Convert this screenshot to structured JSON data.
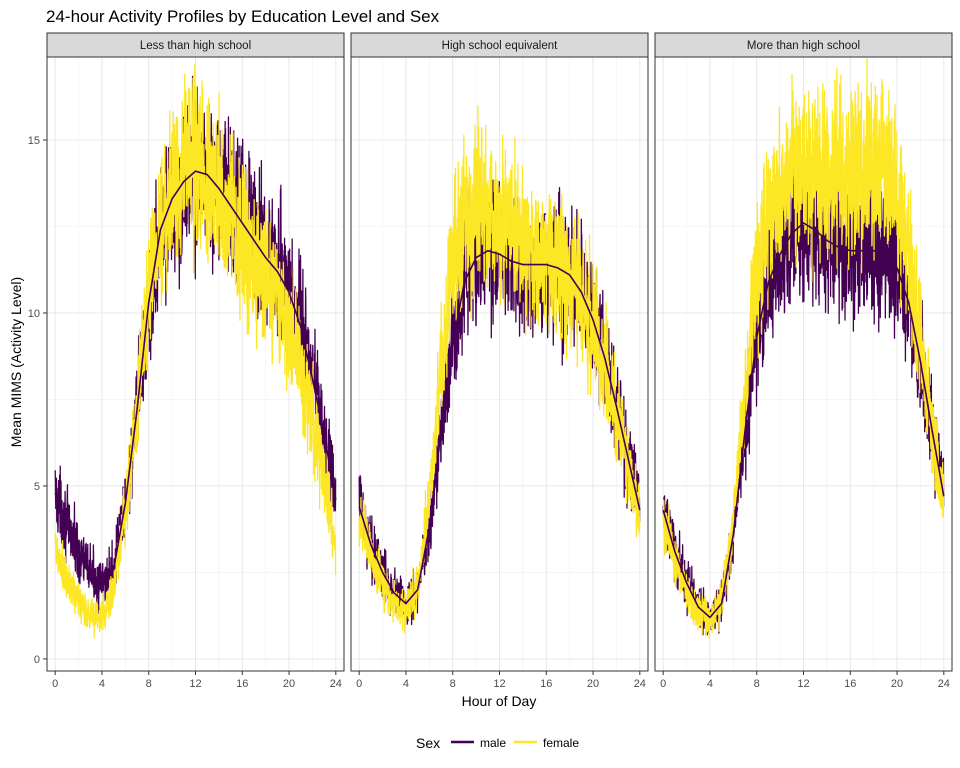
{
  "chart_data": {
    "type": "line",
    "title": "24-hour Activity Profiles by Education Level and Sex",
    "xlabel": "Hour of Day",
    "ylabel": "Mean MIMS (Activity Level)",
    "xlim": [
      -0.7,
      24.7
    ],
    "ylim": [
      -0.35,
      17.4
    ],
    "xticks": [
      0,
      4,
      8,
      12,
      16,
      20,
      24
    ],
    "yticks": [
      0,
      5,
      10,
      15
    ],
    "grid": true,
    "legend": {
      "title": "Sex",
      "position": "bottom",
      "entries": [
        {
          "label": "male",
          "color": "#440154"
        },
        {
          "label": "female",
          "color": "#fde725"
        }
      ]
    },
    "facets": [
      {
        "label": "Less than high school",
        "series": [
          {
            "name": "male",
            "color": "#440154",
            "x": [
              0,
              1,
              2,
              3,
              4,
              5,
              6,
              7,
              8,
              9,
              10,
              11,
              12,
              13,
              14,
              15,
              16,
              17,
              18,
              19,
              20,
              21,
              22,
              23,
              24
            ],
            "y": [
              4.8,
              3.9,
              3.1,
              2.5,
              2.1,
              2.6,
              4.5,
              7.2,
              10.3,
              12.4,
              13.3,
              13.8,
              14.1,
              14.0,
              13.6,
              13.1,
              12.6,
              12.1,
              11.6,
              11.2,
              10.6,
              9.6,
              8.1,
              6.5,
              4.6
            ]
          },
          {
            "name": "female",
            "color": "#fde725",
            "x": [
              0,
              1,
              2,
              3,
              4,
              5,
              6,
              7,
              8,
              9,
              10,
              11,
              12,
              13,
              14,
              15,
              16,
              17,
              18,
              19,
              20,
              21,
              22,
              23,
              24
            ],
            "y": [
              3.1,
              2.2,
              1.7,
              1.3,
              1.2,
              2.0,
              4.2,
              7.4,
              10.6,
              12.6,
              13.7,
              14.5,
              14.3,
              13.8,
              13.4,
              12.8,
              12.2,
              11.6,
              11.0,
              10.4,
              9.6,
              8.6,
              7.0,
              5.2,
              3.3
            ]
          }
        ]
      },
      {
        "label": "High school equivalent",
        "series": [
          {
            "name": "male",
            "color": "#440154",
            "x": [
              0,
              1,
              2,
              3,
              4,
              5,
              6,
              7,
              8,
              9,
              10,
              11,
              12,
              13,
              14,
              15,
              16,
              17,
              18,
              19,
              20,
              21,
              22,
              23,
              24
            ],
            "y": [
              4.4,
              3.3,
              2.5,
              1.9,
              1.6,
              2.0,
              3.8,
              6.6,
              9.1,
              10.9,
              11.6,
              11.8,
              11.7,
              11.5,
              11.4,
              11.4,
              11.4,
              11.3,
              11.1,
              10.6,
              9.8,
              8.7,
              7.3,
              5.8,
              4.3
            ]
          },
          {
            "name": "female",
            "color": "#fde725",
            "x": [
              0,
              1,
              2,
              3,
              4,
              5,
              6,
              7,
              8,
              9,
              10,
              11,
              12,
              13,
              14,
              15,
              16,
              17,
              18,
              19,
              20,
              21,
              22,
              23,
              24
            ],
            "y": [
              4.1,
              3.0,
              2.2,
              1.6,
              1.4,
              2.1,
              4.6,
              8.4,
              11.4,
              12.9,
              13.2,
              13.0,
              12.6,
              12.2,
              11.9,
              11.6,
              11.4,
              11.2,
              11.0,
              10.5,
              9.7,
              8.5,
              7.0,
              5.6,
              4.1
            ]
          }
        ]
      },
      {
        "label": "More than high school",
        "series": [
          {
            "name": "male",
            "color": "#440154",
            "x": [
              0,
              1,
              2,
              3,
              4,
              5,
              6,
              7,
              8,
              9,
              10,
              11,
              12,
              13,
              14,
              15,
              16,
              17,
              18,
              19,
              20,
              21,
              22,
              23,
              24
            ],
            "y": [
              4.3,
              3.1,
              2.2,
              1.5,
              1.2,
              1.6,
              3.6,
              6.6,
              9.3,
              10.9,
              11.7,
              12.3,
              12.6,
              12.4,
              12.1,
              11.9,
              11.8,
              11.8,
              11.8,
              11.7,
              11.3,
              10.3,
              8.6,
              6.6,
              4.7
            ]
          },
          {
            "name": "female",
            "color": "#fde725",
            "x": [
              0,
              1,
              2,
              3,
              4,
              5,
              6,
              7,
              8,
              9,
              10,
              11,
              12,
              13,
              14,
              15,
              16,
              17,
              18,
              19,
              20,
              21,
              22,
              23,
              24
            ],
            "y": [
              4.0,
              2.9,
              2.0,
              1.4,
              1.1,
              1.6,
              3.9,
              7.5,
              11.1,
              13.0,
              13.7,
              13.9,
              13.9,
              13.9,
              14.0,
              14.1,
              14.1,
              14.2,
              14.4,
              14.2,
              13.3,
              11.5,
              9.1,
              6.6,
              4.3
            ]
          }
        ]
      }
    ]
  }
}
